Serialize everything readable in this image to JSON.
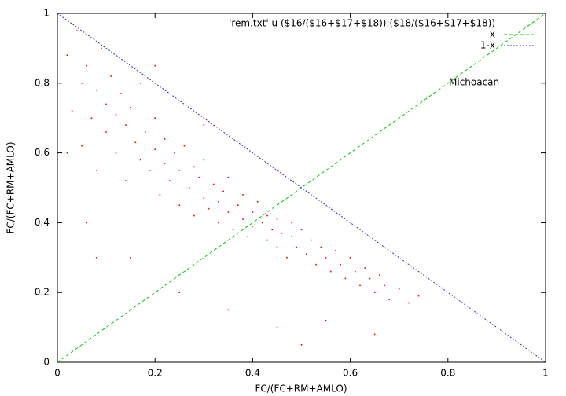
{
  "chart_data": {
    "type": "scatter",
    "xlabel": "FC/(FC+RM+AMLO)",
    "ylabel": "FC/(FC+RM+AMLO)",
    "xlim": [
      0,
      1
    ],
    "ylim": [
      0,
      1
    ],
    "xticks": [
      0,
      0.2,
      0.4,
      0.6,
      0.8,
      1
    ],
    "yticks": [
      0,
      0.2,
      0.4,
      0.6,
      0.8,
      1
    ],
    "grid": false,
    "legend": "top-right",
    "annotations": [
      "Michoacan"
    ],
    "series": [
      {
        "name": "'rem.txt' u ($16/($16+$17+$18)):($18/($16+$17+$18))",
        "style": "points",
        "color": "#ff0000",
        "x": [
          0.02,
          0.03,
          0.04,
          0.05,
          0.05,
          0.06,
          0.07,
          0.08,
          0.08,
          0.09,
          0.1,
          0.1,
          0.11,
          0.12,
          0.12,
          0.13,
          0.14,
          0.14,
          0.15,
          0.16,
          0.17,
          0.17,
          0.18,
          0.19,
          0.2,
          0.2,
          0.21,
          0.22,
          0.22,
          0.23,
          0.24,
          0.25,
          0.25,
          0.26,
          0.27,
          0.28,
          0.28,
          0.29,
          0.3,
          0.3,
          0.31,
          0.32,
          0.33,
          0.33,
          0.34,
          0.35,
          0.35,
          0.36,
          0.37,
          0.38,
          0.38,
          0.39,
          0.4,
          0.4,
          0.41,
          0.42,
          0.43,
          0.43,
          0.44,
          0.45,
          0.45,
          0.46,
          0.47,
          0.48,
          0.48,
          0.49,
          0.5,
          0.51,
          0.52,
          0.53,
          0.54,
          0.55,
          0.56,
          0.57,
          0.58,
          0.59,
          0.6,
          0.61,
          0.62,
          0.63,
          0.64,
          0.65,
          0.66,
          0.67,
          0.68,
          0.7,
          0.72,
          0.74,
          0.06,
          0.15,
          0.25,
          0.35,
          0.45,
          0.55,
          0.2,
          0.3,
          0.08,
          0.5,
          0.65,
          0.02
        ],
        "values": [
          0.88,
          0.72,
          0.95,
          0.8,
          0.62,
          0.85,
          0.7,
          0.78,
          0.55,
          0.9,
          0.74,
          0.66,
          0.82,
          0.6,
          0.71,
          0.77,
          0.52,
          0.68,
          0.73,
          0.63,
          0.58,
          0.8,
          0.66,
          0.55,
          0.61,
          0.7,
          0.48,
          0.57,
          0.64,
          0.52,
          0.6,
          0.45,
          0.55,
          0.62,
          0.5,
          0.56,
          0.42,
          0.53,
          0.47,
          0.58,
          0.44,
          0.51,
          0.46,
          0.4,
          0.49,
          0.43,
          0.53,
          0.38,
          0.45,
          0.41,
          0.48,
          0.36,
          0.43,
          0.39,
          0.46,
          0.4,
          0.35,
          0.42,
          0.38,
          0.33,
          0.41,
          0.37,
          0.3,
          0.36,
          0.4,
          0.33,
          0.38,
          0.31,
          0.35,
          0.28,
          0.33,
          0.3,
          0.26,
          0.32,
          0.28,
          0.24,
          0.3,
          0.26,
          0.22,
          0.27,
          0.24,
          0.2,
          0.25,
          0.22,
          0.18,
          0.21,
          0.17,
          0.19,
          0.4,
          0.3,
          0.2,
          0.15,
          0.1,
          0.12,
          0.85,
          0.68,
          0.3,
          0.05,
          0.08,
          0.6
        ]
      },
      {
        "name": "x",
        "style": "dashed",
        "color": "#00cc00",
        "x": [
          0,
          1
        ],
        "values": [
          0,
          1
        ]
      },
      {
        "name": "1-x",
        "style": "dotted",
        "color": "#3333cc",
        "x": [
          0,
          1
        ],
        "values": [
          1,
          0
        ]
      }
    ]
  }
}
